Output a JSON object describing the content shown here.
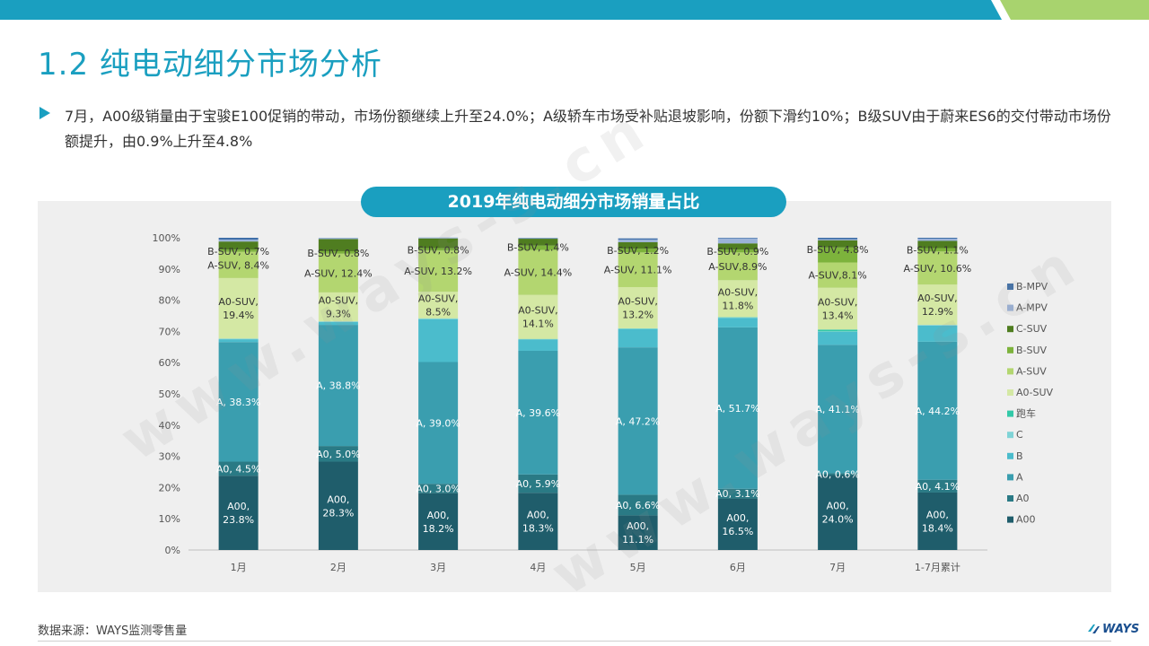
{
  "header": {
    "title": "1.2 纯电动细分市场分析",
    "bullet": "7月，A00级销量由于宝骏E100促销的带动，市场份额继续上升至24.0%；A级轿车市场受补贴退坡影响，份额下滑约10%；B级SUV由于蔚来ES6的交付带动市场份额提升，由0.9%上升至4.8%"
  },
  "watermark": "www.ways-s.cn",
  "chart_title": "2019年纯电动细分市场销量占比",
  "footer": {
    "source": "数据来源：WAYS监测零售量",
    "logo": "WAYS"
  },
  "colors": {
    "accent": "#1a9fc0",
    "A00": "#1f5d6b",
    "A0": "#2a7a85",
    "A": "#3a9eaf",
    "B": "#4bbccc",
    "C": "#7fd3d6",
    "跑车": "#33c9a8",
    "A0-SUV": "#d4e8a4",
    "A-SUV": "#b3d670",
    "B-SUV": "#7db33c",
    "C-SUV": "#4f7d20",
    "A-MPV": "#9bb3d8",
    "B-MPV": "#3f6fa8"
  },
  "chart_data": {
    "type": "bar",
    "stacked": true,
    "categories": [
      "1月",
      "2月",
      "3月",
      "4月",
      "5月",
      "6月",
      "7月",
      "1-7月累计"
    ],
    "ylim": [
      0,
      100
    ],
    "yticks": [
      "0%",
      "10%",
      "20%",
      "30%",
      "40%",
      "50%",
      "60%",
      "70%",
      "80%",
      "90%",
      "100%"
    ],
    "legend_position": "right",
    "legend": [
      "B-MPV",
      "A-MPV",
      "C-SUV",
      "B-SUV",
      "A-SUV",
      "A0-SUV",
      "跑车",
      "C",
      "B",
      "A",
      "A0",
      "A00"
    ],
    "series": [
      {
        "name": "A00",
        "values": [
          23.8,
          28.3,
          18.2,
          18.3,
          11.1,
          16.5,
          24.0,
          18.4
        ]
      },
      {
        "name": "A0",
        "values": [
          4.5,
          5.0,
          3.0,
          5.9,
          6.6,
          3.1,
          0.6,
          4.1
        ]
      },
      {
        "name": "A",
        "values": [
          38.3,
          38.8,
          39.0,
          39.6,
          47.2,
          51.7,
          41.1,
          44.2
        ]
      },
      {
        "name": "B",
        "values": [
          0.9,
          1.0,
          13.7,
          3.6,
          5.8,
          3.0,
          4.2,
          5.2
        ]
      },
      {
        "name": "C",
        "values": [
          0.2,
          0.1,
          0.2,
          0.1,
          0.2,
          0.2,
          0.1,
          0.2
        ]
      },
      {
        "name": "跑车",
        "values": [
          0.0,
          0.0,
          0.1,
          0.1,
          0.1,
          0.1,
          0.6,
          0.0
        ]
      },
      {
        "name": "A0-SUV",
        "values": [
          19.4,
          9.3,
          8.5,
          14.1,
          13.2,
          11.8,
          13.4,
          12.9
        ]
      },
      {
        "name": "A-SUV",
        "values": [
          8.4,
          12.4,
          13.2,
          14.4,
          11.1,
          8.9,
          8.1,
          10.6
        ]
      },
      {
        "name": "B-SUV",
        "values": [
          0.7,
          0.8,
          0.8,
          1.4,
          1.2,
          0.9,
          4.8,
          1.1
        ]
      },
      {
        "name": "C-SUV",
        "values": [
          2.6,
          3.9,
          3.1,
          2.2,
          2.1,
          2.0,
          2.3,
          2.3
        ]
      },
      {
        "name": "A-MPV",
        "values": [
          0.6,
          0.4,
          0.3,
          0.2,
          0.8,
          1.6,
          0.3,
          0.7
        ]
      },
      {
        "name": "B-MPV",
        "values": [
          0.6,
          0.0,
          0.0,
          0.1,
          0.4,
          0.2,
          0.5,
          0.3
        ]
      }
    ],
    "data_labels": [
      [
        {
          "s": "A00",
          "t": [
            "A00,",
            "23.8%"
          ]
        },
        {
          "s": "A0",
          "t": [
            "A0, 4.5%"
          ]
        },
        {
          "s": "A",
          "t": [
            "A, 38.3%"
          ]
        },
        {
          "s": "A0-SUV",
          "t": [
            "A0-SUV,",
            "19.4%"
          ]
        },
        {
          "s": "A-SUV",
          "t": [
            "A-SUV, 8.4%"
          ]
        },
        {
          "s": "B-SUV",
          "t": [
            "B-SUV, 0.7%"
          ]
        }
      ],
      [
        {
          "s": "A00",
          "t": [
            "A00,",
            "28.3%"
          ]
        },
        {
          "s": "A0",
          "t": [
            "A0, 5.0%"
          ]
        },
        {
          "s": "A",
          "t": [
            "A, 38.8%"
          ]
        },
        {
          "s": "A0-SUV",
          "t": [
            "A0-SUV,",
            "9.3%"
          ]
        },
        {
          "s": "A-SUV",
          "t": [
            "A-SUV, 12.4%"
          ]
        },
        {
          "s": "B-SUV",
          "t": [
            "B-SUV, 0.8%"
          ]
        }
      ],
      [
        {
          "s": "A00",
          "t": [
            "A00,",
            "18.2%"
          ]
        },
        {
          "s": "A0",
          "t": [
            "A0, 3.0%"
          ]
        },
        {
          "s": "A",
          "t": [
            "A, 39.0%"
          ]
        },
        {
          "s": "A0-SUV",
          "t": [
            "A0-SUV,",
            "8.5%"
          ]
        },
        {
          "s": "A-SUV",
          "t": [
            "A-SUV, 13.2%"
          ]
        },
        {
          "s": "B-SUV",
          "t": [
            "B-SUV, 0.8%"
          ]
        }
      ],
      [
        {
          "s": "A00",
          "t": [
            "A00,",
            "18.3%"
          ]
        },
        {
          "s": "A0",
          "t": [
            "A0, 5.9%"
          ]
        },
        {
          "s": "A",
          "t": [
            "A, 39.6%"
          ]
        },
        {
          "s": "A0-SUV",
          "t": [
            "A0-SUV,",
            "14.1%"
          ]
        },
        {
          "s": "A-SUV",
          "t": [
            "A-SUV, 14.4%"
          ]
        },
        {
          "s": "B-SUV",
          "t": [
            "B-SUV, 1.4%"
          ]
        }
      ],
      [
        {
          "s": "A00",
          "t": [
            "A00,",
            "11.1%"
          ]
        },
        {
          "s": "A0",
          "t": [
            "A0, 6.6%"
          ]
        },
        {
          "s": "A",
          "t": [
            "A, 47.2%"
          ]
        },
        {
          "s": "A0-SUV",
          "t": [
            "A0-SUV,",
            "13.2%"
          ]
        },
        {
          "s": "A-SUV",
          "t": [
            "A-SUV, 11.1%"
          ]
        },
        {
          "s": "B-SUV",
          "t": [
            "B-SUV, 1.2%"
          ]
        }
      ],
      [
        {
          "s": "A00",
          "t": [
            "A00,",
            "16.5%"
          ]
        },
        {
          "s": "A0",
          "t": [
            "A0, 3.1%"
          ]
        },
        {
          "s": "A",
          "t": [
            "A, 51.7%"
          ]
        },
        {
          "s": "A0-SUV",
          "t": [
            "A0-SUV,",
            "11.8%"
          ]
        },
        {
          "s": "A-SUV",
          "t": [
            "A-SUV,8.9%"
          ]
        },
        {
          "s": "B-SUV",
          "t": [
            "B-SUV, 0.9%"
          ]
        }
      ],
      [
        {
          "s": "A00",
          "t": [
            "A00,",
            "24.0%"
          ]
        },
        {
          "s": "A0",
          "t": [
            "A0, 0.6%"
          ]
        },
        {
          "s": "A",
          "t": [
            "A, 41.1%"
          ]
        },
        {
          "s": "A0-SUV",
          "t": [
            "A0-SUV,",
            "13.4%"
          ]
        },
        {
          "s": "A-SUV",
          "t": [
            "A-SUV,8.1%"
          ]
        },
        {
          "s": "B-SUV",
          "t": [
            "B-SUV, 4.8%"
          ]
        }
      ],
      [
        {
          "s": "A00",
          "t": [
            "A00,",
            "18.4%"
          ]
        },
        {
          "s": "A0",
          "t": [
            "A0, 4.1%"
          ]
        },
        {
          "s": "A",
          "t": [
            "A, 44.2%"
          ]
        },
        {
          "s": "A0-SUV",
          "t": [
            "A0-SUV,",
            "12.9%"
          ]
        },
        {
          "s": "A-SUV",
          "t": [
            "A-SUV, 10.6%"
          ]
        },
        {
          "s": "B-SUV",
          "t": [
            "B-SUV, 1.1%"
          ]
        }
      ]
    ]
  }
}
